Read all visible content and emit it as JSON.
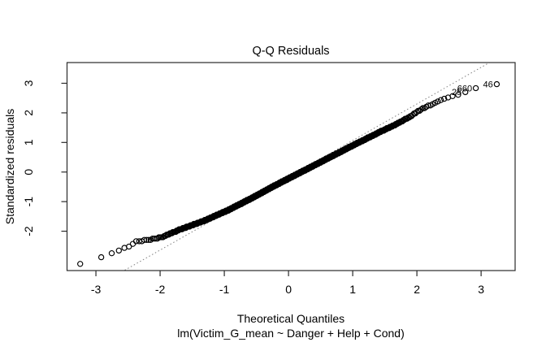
{
  "chart_data": {
    "type": "scatter",
    "subtype": "qq-normal-plot",
    "title": "Q-Q Residuals",
    "subtitle": "lm(Victim_G_mean ~ Danger + Help + Cond)",
    "xlabel": "Theoretical Quantiles",
    "ylabel": "Standardized residuals",
    "x_ticks": [
      -3,
      -2,
      -1,
      0,
      1,
      2,
      3
    ],
    "y_ticks": [
      -2,
      -1,
      0,
      1,
      2,
      3
    ],
    "xlim": [
      -3.45,
      3.53
    ],
    "ylim": [
      -3.33,
      3.7
    ],
    "grid": false,
    "marker": "open-circle",
    "n_points": 850,
    "quantile_curve": [
      [
        -3.243,
        -3.105
      ],
      [
        -2.917,
        -2.885
      ],
      [
        -2.75,
        -2.76
      ],
      [
        -2.64,
        -2.63
      ],
      [
        -2.55,
        -2.57
      ],
      [
        -2.46,
        -2.51
      ],
      [
        -2.37,
        -2.35
      ],
      [
        -2.24,
        -2.31
      ],
      [
        -2.1,
        -2.26
      ],
      [
        -1.98,
        -2.21
      ],
      [
        -1.7,
        -1.95
      ],
      [
        -1.33,
        -1.66
      ],
      [
        -0.95,
        -1.3
      ],
      [
        -0.57,
        -0.88
      ],
      [
        -0.25,
        -0.5
      ],
      [
        0.0,
        -0.22
      ],
      [
        0.35,
        0.17
      ],
      [
        0.7,
        0.56
      ],
      [
        1.05,
        0.95
      ],
      [
        1.4,
        1.33
      ],
      [
        1.7,
        1.64
      ],
      [
        1.9,
        1.88
      ],
      [
        2.05,
        2.1
      ],
      [
        2.2,
        2.26
      ],
      [
        2.35,
        2.42
      ],
      [
        2.5,
        2.53
      ],
      [
        2.65,
        2.63
      ],
      [
        2.8,
        2.73
      ],
      [
        2.917,
        2.835
      ],
      [
        3.05,
        2.9
      ],
      [
        3.243,
        2.97
      ]
    ],
    "reference_line": {
      "slope": 1.235,
      "intercept": -0.168,
      "style": "dotted"
    },
    "labeled_points": [
      {
        "label": "25",
        "x": 2.754,
        "y": 2.7
      },
      {
        "label": "660",
        "x": 2.917,
        "y": 2.835
      },
      {
        "label": "46",
        "x": 3.243,
        "y": 2.97
      }
    ],
    "colors": {
      "points": "#000000",
      "reference_line": "#808080",
      "axis": "#2a2a2a",
      "background": "#ffffff"
    }
  }
}
